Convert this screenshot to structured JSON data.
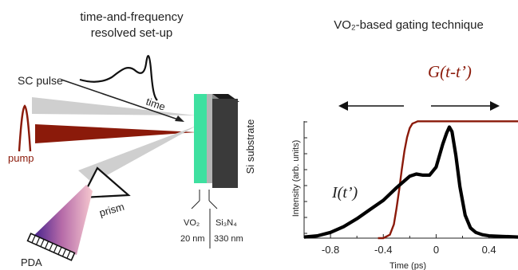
{
  "left_panel": {
    "title_line1": "time-and-frequency",
    "title_line2": "resolved set-up",
    "labels": {
      "sc_pulse": "SC pulse",
      "time": "time",
      "pump": "pump",
      "prism": "prism",
      "pda": "PDA",
      "substrate": "Si substrate",
      "layer1_material": "VO₂",
      "layer1_thickness": "20 nm",
      "layer2_material": "Si₃N₄",
      "layer2_thickness": "330 nm"
    },
    "colors": {
      "pump_beam": "#8b1a0a",
      "probe_beam": "#cfcfcf",
      "vo2_layer": "#3ee0a0",
      "si3n4_layer": "#b4b4b4",
      "si_substrate": "#3a3a3a",
      "spectrum_start": "#3a1a8a",
      "spectrum_end": "#f6c8cf"
    }
  },
  "right_panel": {
    "title": "VO₂-based gating technique",
    "gate_label": "G(t-t’)",
    "intensity_label": "I(t’)",
    "chart_data": {
      "type": "line",
      "title": "VO₂-based gating technique",
      "xlabel": "Time (ps)",
      "ylabel": "Intensity (arb. units)",
      "xlim": [
        -1.0,
        0.62
      ],
      "ylim": [
        0,
        1.05
      ],
      "xticks": [
        "-0.8",
        "-0.4",
        "0",
        "0.4"
      ],
      "xtick_values": [
        -0.8,
        -0.4,
        0,
        0.4
      ],
      "colors": {
        "intensity": "#000000",
        "gate": "#8b1a0a"
      },
      "series": [
        {
          "name": "I(t’)",
          "x": [
            -1.0,
            -0.9,
            -0.8,
            -0.7,
            -0.6,
            -0.5,
            -0.4,
            -0.3,
            -0.2,
            -0.15,
            -0.1,
            -0.05,
            0.0,
            0.05,
            0.08,
            0.1,
            0.12,
            0.15,
            0.18,
            0.22,
            0.26,
            0.3,
            0.35,
            0.4,
            0.5,
            0.62
          ],
          "y": [
            0.01,
            0.02,
            0.05,
            0.1,
            0.17,
            0.25,
            0.33,
            0.44,
            0.54,
            0.56,
            0.55,
            0.55,
            0.62,
            0.82,
            0.92,
            0.97,
            0.93,
            0.72,
            0.45,
            0.2,
            0.09,
            0.05,
            0.03,
            0.02,
            0.015,
            0.01
          ]
        },
        {
          "name": "G(t-t’)",
          "x": [
            -0.44,
            -0.4,
            -0.35,
            -0.32,
            -0.3,
            -0.28,
            -0.26,
            -0.24,
            -0.22,
            -0.2,
            -0.18,
            -0.16,
            -0.14,
            0.0,
            0.2,
            0.4,
            0.62
          ],
          "y": [
            0.0,
            0.0,
            0.03,
            0.12,
            0.26,
            0.42,
            0.6,
            0.76,
            0.88,
            0.96,
            1.0,
            1.01,
            1.02,
            1.02,
            1.02,
            1.02,
            1.02
          ]
        }
      ]
    }
  }
}
